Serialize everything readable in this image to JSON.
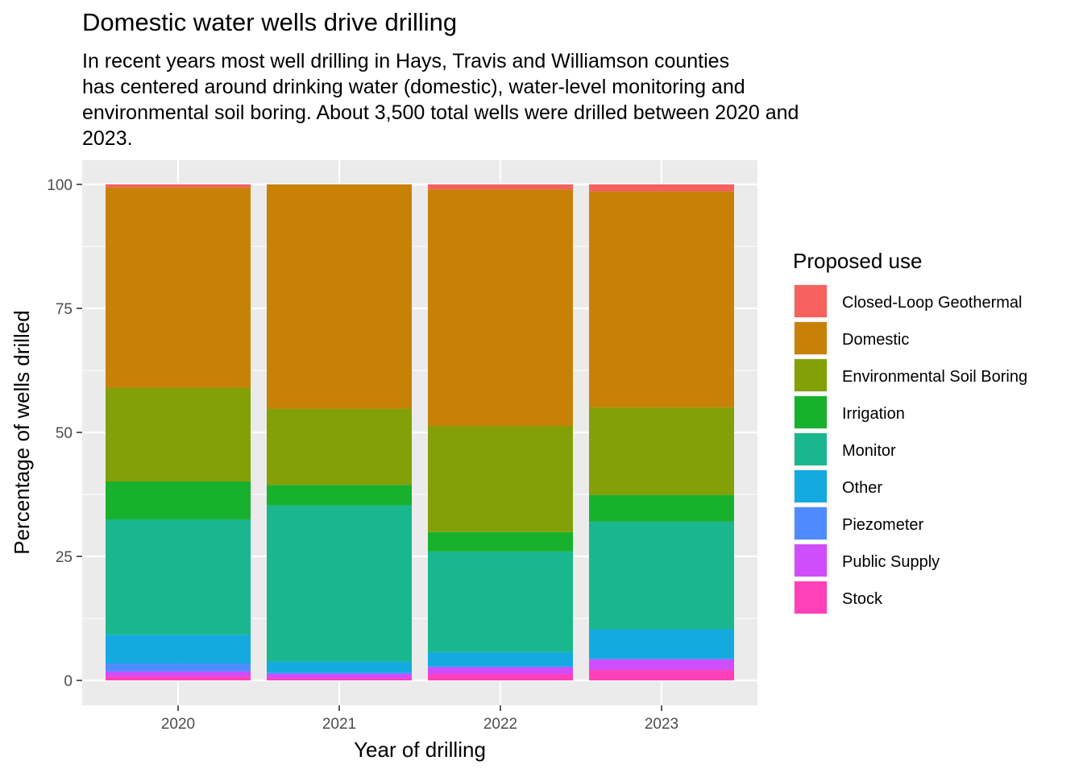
{
  "chart_data": {
    "type": "bar",
    "stacked": true,
    "title": "Domestic water wells drive drilling",
    "subtitle_lines": [
      "In recent years most well drilling in Hays, Travis and Williamson counties",
      "has centered around drinking water (domestic), water-level monitoring and",
      "environmental soil boring. About 3,500 total wells were drilled between 2020 and",
      "2023."
    ],
    "xlabel": "Year of drilling",
    "ylabel": "Percentage of wells drilled",
    "ylim": [
      -5,
      103
    ],
    "yticks": [
      0,
      25,
      50,
      75,
      100
    ],
    "grid": true,
    "legend": {
      "title": "Proposed use",
      "position": "right"
    },
    "categories": [
      "2020",
      "2021",
      "2022",
      "2023"
    ],
    "series": [
      {
        "name": "Stock",
        "color": "#FF40B8",
        "values": [
          0.8,
          0.4,
          1.3,
          2.1
        ]
      },
      {
        "name": "Public Supply",
        "color": "#D04DFC",
        "values": [
          1.0,
          0.9,
          1.3,
          2.1
        ]
      },
      {
        "name": "Piezometer",
        "color": "#4F8BFF",
        "values": [
          1.6,
          0.3,
          0.3,
          0.2
        ]
      },
      {
        "name": "Other",
        "color": "#14A9DF",
        "values": [
          5.8,
          2.2,
          2.8,
          5.9
        ]
      },
      {
        "name": "Monitor",
        "color": "#1AB78E",
        "values": [
          23.2,
          31.5,
          20.3,
          21.7
        ]
      },
      {
        "name": "Irrigation",
        "color": "#18B12E",
        "values": [
          7.7,
          4.1,
          3.9,
          5.4
        ]
      },
      {
        "name": "Environmental Soil Boring",
        "color": "#83A006",
        "values": [
          18.9,
          15.4,
          21.4,
          17.6
        ]
      },
      {
        "name": "Domestic",
        "color": "#C88107",
        "values": [
          40.4,
          45.2,
          47.7,
          43.6
        ]
      },
      {
        "name": "Closed-Loop Geothermal",
        "color": "#F4615E",
        "values": [
          0.6,
          0.0,
          1.0,
          1.4
        ]
      }
    ]
  }
}
